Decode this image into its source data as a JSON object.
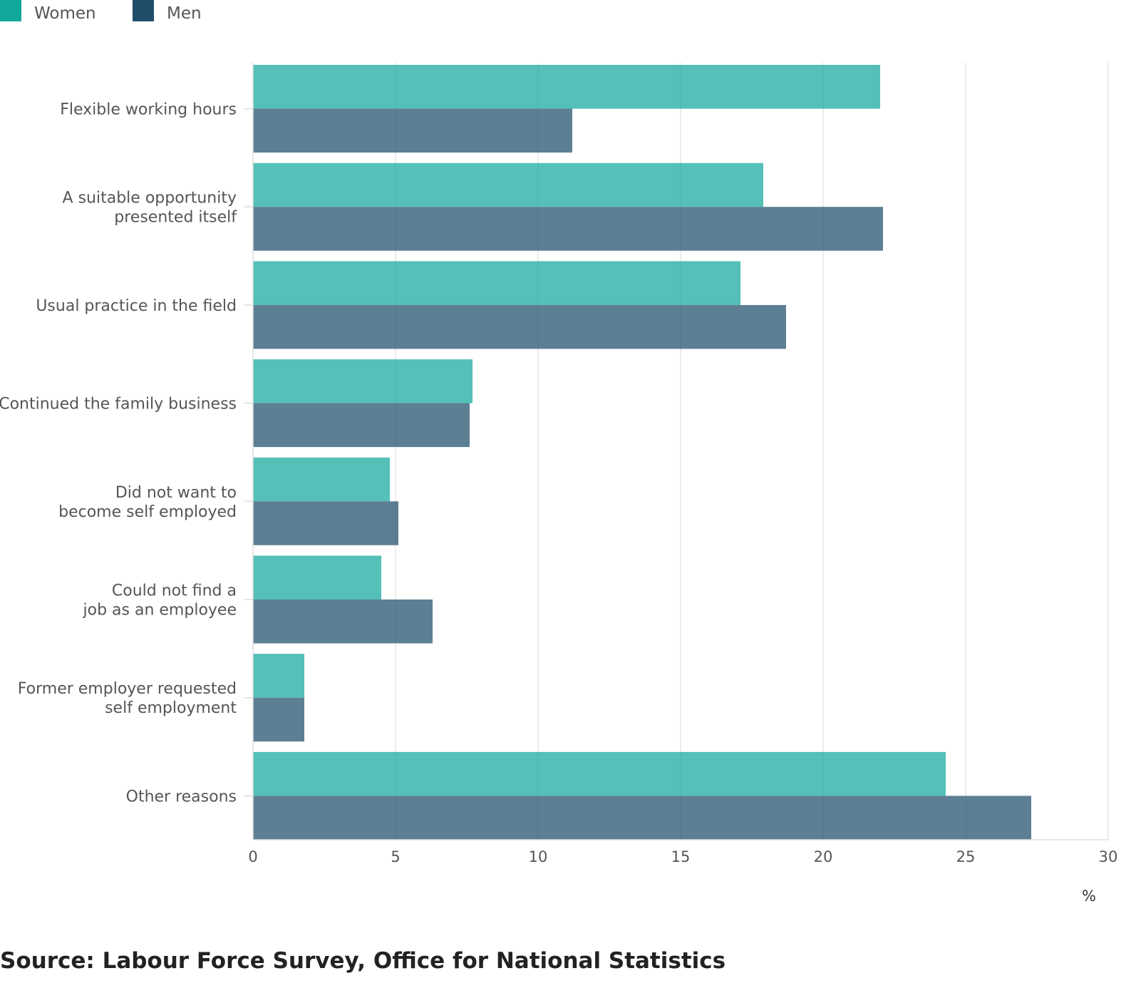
{
  "chart_data": {
    "type": "bar",
    "orientation": "horizontal",
    "categories": [
      "Flexible working hours",
      "A suitable opportunity\npresented itself",
      "Usual practice in the field",
      "Continued the family business",
      "Did not want to\nbecome self employed",
      "Could not find a\njob as an employee",
      "Former employer requested\nself employment",
      "Other reasons"
    ],
    "series": [
      {
        "name": "Women",
        "color": "#12a89d",
        "values": [
          22.0,
          17.9,
          17.1,
          7.7,
          4.8,
          4.5,
          1.8,
          24.3
        ]
      },
      {
        "name": "Men",
        "color": "#1f4e6b",
        "values": [
          11.2,
          22.1,
          18.7,
          7.6,
          5.1,
          6.3,
          1.8,
          27.3
        ]
      }
    ],
    "xlim": [
      0,
      30
    ],
    "xticks": [
      0,
      5,
      10,
      15,
      20,
      25,
      30
    ],
    "xunit": "%",
    "grid": true,
    "legend_position": "top-left",
    "source": "Source: Labour Force Survey, Office for National Statistics"
  }
}
